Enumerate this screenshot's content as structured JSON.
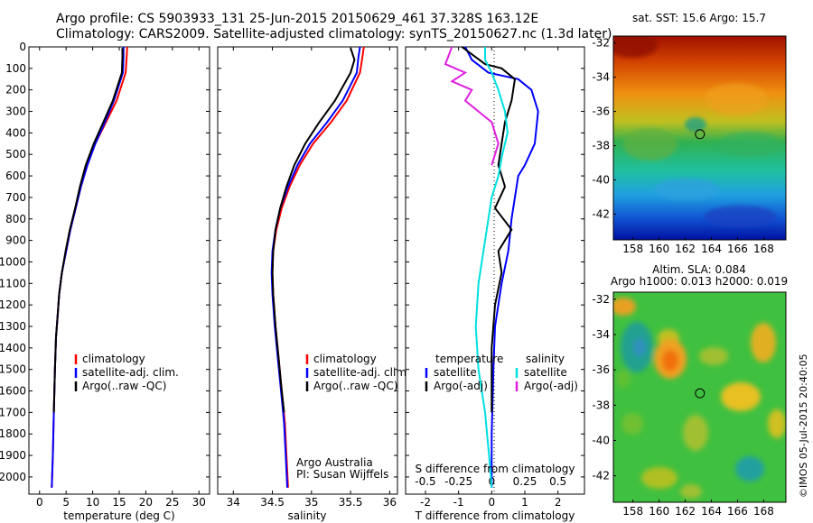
{
  "header": {
    "line1": "Argo profile: CS 5903933_131 25-Jun-2015 20150629_461 37.328S 163.12E",
    "line2": "Climatology: CARS2009. Satellite-adjusted climatology: synTS_20150627.nc (1.3d later)"
  },
  "colors": {
    "climatology": "#ff0000",
    "satellite": "#0000ff",
    "argo": "#000000",
    "salinity_satellite": "#00e0e0",
    "salinity_argo": "#e020e0"
  },
  "chart_data": [
    {
      "type": "line",
      "id": "temperature",
      "xlabel": "temperature (deg C)",
      "ylabel": "",
      "xlim": [
        -2,
        32
      ],
      "ylim": [
        2080,
        0
      ],
      "xticks": [
        0,
        5,
        10,
        15,
        20,
        25,
        30
      ],
      "yticks": [
        0,
        100,
        200,
        300,
        400,
        500,
        600,
        700,
        800,
        900,
        1000,
        1100,
        1200,
        1300,
        1400,
        1500,
        1600,
        1700,
        1800,
        1900,
        2000
      ],
      "legend": [
        "climatology",
        "satellite-adj. clim.",
        "Argo(..raw -QC)"
      ],
      "series": [
        {
          "name": "climatology",
          "x": [
            16.5,
            16.4,
            16.2,
            14.5,
            12.5,
            10.5,
            9.0,
            7.8,
            6.8,
            5.8,
            5.0,
            4.2,
            3.7,
            3.4,
            3.1,
            2.9,
            2.7,
            2.5,
            2.3
          ],
          "y": [
            0,
            50,
            120,
            250,
            350,
            450,
            550,
            650,
            750,
            850,
            950,
            1050,
            1150,
            1250,
            1350,
            1500,
            1700,
            1900,
            2050
          ]
        },
        {
          "name": "satellite-adj. clim.",
          "x": [
            15.8,
            15.8,
            15.7,
            14.0,
            12.3,
            10.5,
            9.0,
            7.8,
            6.8,
            5.8,
            5.0,
            4.2,
            3.7,
            3.4,
            3.1,
            2.9,
            2.7,
            2.5,
            2.3
          ],
          "y": [
            0,
            50,
            120,
            250,
            350,
            450,
            550,
            650,
            750,
            850,
            950,
            1050,
            1150,
            1250,
            1350,
            1500,
            1700,
            1900,
            2050
          ]
        },
        {
          "name": "Argo(..raw -QC)",
          "x": [
            15.6,
            15.6,
            15.5,
            13.8,
            12.0,
            10.2,
            8.7,
            7.6,
            6.7,
            5.7,
            4.9,
            4.2,
            3.7,
            3.4,
            3.1,
            2.9,
            2.7
          ],
          "y": [
            5,
            50,
            120,
            250,
            350,
            450,
            550,
            650,
            750,
            850,
            950,
            1050,
            1150,
            1250,
            1350,
            1500,
            1700
          ]
        }
      ]
    },
    {
      "type": "line",
      "id": "salinity",
      "xlabel": "salinity",
      "xlim": [
        33.8,
        36.1
      ],
      "ylim": [
        2080,
        0
      ],
      "xticks": [
        34,
        34.5,
        35,
        35.5,
        36
      ],
      "legend": [
        "climatology",
        "satellite-adj. clim.",
        "Argo(..raw -QC)"
      ],
      "annotation": [
        "Argo Australia",
        "PI: Susan Wijffels"
      ],
      "series": [
        {
          "name": "climatology",
          "x": [
            35.67,
            35.65,
            35.62,
            35.45,
            35.25,
            35.02,
            34.85,
            34.72,
            34.62,
            34.55,
            34.51,
            34.5,
            34.51,
            34.54,
            34.58,
            34.62,
            34.66,
            34.68,
            34.7
          ],
          "y": [
            0,
            50,
            120,
            250,
            350,
            450,
            550,
            650,
            750,
            850,
            950,
            1050,
            1150,
            1300,
            1450,
            1600,
            1750,
            1900,
            2050
          ]
        },
        {
          "name": "satellite-adj. clim.",
          "x": [
            35.62,
            35.6,
            35.58,
            35.4,
            35.2,
            34.98,
            34.82,
            34.7,
            34.6,
            34.54,
            34.5,
            34.49,
            34.5,
            34.53,
            34.57,
            34.61,
            34.65,
            34.67,
            34.69
          ],
          "y": [
            0,
            50,
            120,
            250,
            350,
            450,
            550,
            650,
            750,
            850,
            950,
            1050,
            1150,
            1300,
            1450,
            1600,
            1750,
            1900,
            2050
          ]
        },
        {
          "name": "Argo(..raw -QC)",
          "x": [
            35.5,
            35.55,
            35.5,
            35.3,
            35.1,
            34.92,
            34.78,
            34.68,
            34.6,
            34.54,
            34.51,
            34.5,
            34.51,
            34.54,
            34.58,
            34.62,
            34.65
          ],
          "y": [
            5,
            60,
            120,
            250,
            350,
            450,
            550,
            650,
            750,
            850,
            950,
            1050,
            1150,
            1300,
            1450,
            1600,
            1700
          ]
        }
      ]
    },
    {
      "type": "line",
      "id": "difference",
      "xlabel": "T difference from climatology",
      "top_label": "S difference from climatology",
      "xlim": [
        -2.6,
        2.8
      ],
      "ylim": [
        2080,
        0
      ],
      "xticks": [
        -2,
        -1,
        0,
        1,
        2
      ],
      "top_ticks": [
        "-0.5",
        "-0.25",
        "0",
        "0.25",
        "0.5"
      ],
      "legend_groups": [
        {
          "title": "temperature",
          "items": [
            "satellite",
            "Argo(-adj)"
          ]
        },
        {
          "title": "salinity",
          "items": [
            "satellite",
            "Argo(-adj)"
          ]
        }
      ],
      "series": [
        {
          "name": "temperature satellite",
          "x": [
            -0.8,
            -0.6,
            -0.1,
            0.8,
            1.2,
            1.4,
            1.3,
            1.0,
            0.8,
            0.6,
            0.5,
            0.3,
            0.1,
            0.05,
            0.0,
            0.0
          ],
          "y": [
            0,
            60,
            120,
            150,
            200,
            300,
            450,
            550,
            600,
            800,
            950,
            1100,
            1300,
            1500,
            1800,
            2050
          ]
        },
        {
          "name": "temperature Argo(-adj)",
          "x": [
            -0.9,
            -0.2,
            0.3,
            0.7,
            0.6,
            0.4,
            0.3,
            0.2,
            0.4,
            0.1,
            0.6,
            0.2,
            0.3,
            0.1,
            0.0,
            0.0
          ],
          "y": [
            0,
            80,
            100,
            150,
            250,
            350,
            450,
            550,
            650,
            750,
            850,
            950,
            1050,
            1200,
            1400,
            1700
          ]
        },
        {
          "name": "salinity satellite",
          "x": [
            -0.05,
            -0.05,
            0.0,
            0.05,
            0.1,
            0.12,
            0.08,
            0.05,
            0.0,
            -0.05,
            -0.1,
            -0.12,
            -0.1,
            -0.05,
            -0.02,
            0.0
          ],
          "y": [
            0,
            60,
            120,
            200,
            300,
            400,
            500,
            600,
            700,
            900,
            1100,
            1300,
            1500,
            1700,
            1900,
            2050
          ]
        },
        {
          "name": "salinity Argo(-adj)",
          "x": [
            -0.3,
            -0.35,
            -0.2,
            -0.3,
            -0.15,
            -0.2,
            0.0,
            0.05,
            0.0
          ],
          "y": [
            0,
            80,
            120,
            160,
            200,
            250,
            350,
            450,
            550
          ]
        }
      ]
    },
    {
      "type": "heatmap",
      "id": "sst-map",
      "title": "sat. SST: 15.6 Argo: 15.7",
      "xticks": [
        158,
        160,
        162,
        164,
        166,
        168
      ],
      "yticks": [
        -32,
        -34,
        -36,
        -38,
        -40,
        -42
      ],
      "xlim": [
        156.5,
        169.7
      ],
      "ylim": [
        -43.5,
        -31.6
      ],
      "marker": {
        "lon": 163.12,
        "lat": -37.328
      }
    },
    {
      "type": "heatmap",
      "id": "sla-map",
      "title_lines": [
        "Altim. SLA: 0.084",
        "Argo h1000: 0.013 h2000: 0.019"
      ],
      "xticks": [
        158,
        160,
        162,
        164,
        166,
        168
      ],
      "yticks": [
        -32,
        -34,
        -36,
        -38,
        -40,
        -42
      ],
      "xlim": [
        156.5,
        169.7
      ],
      "ylim": [
        -43.5,
        -31.6
      ],
      "marker": {
        "lon": 163.12,
        "lat": -37.328
      }
    }
  ],
  "credit": "©IMOS 05-Jul-2015 20:40:05"
}
